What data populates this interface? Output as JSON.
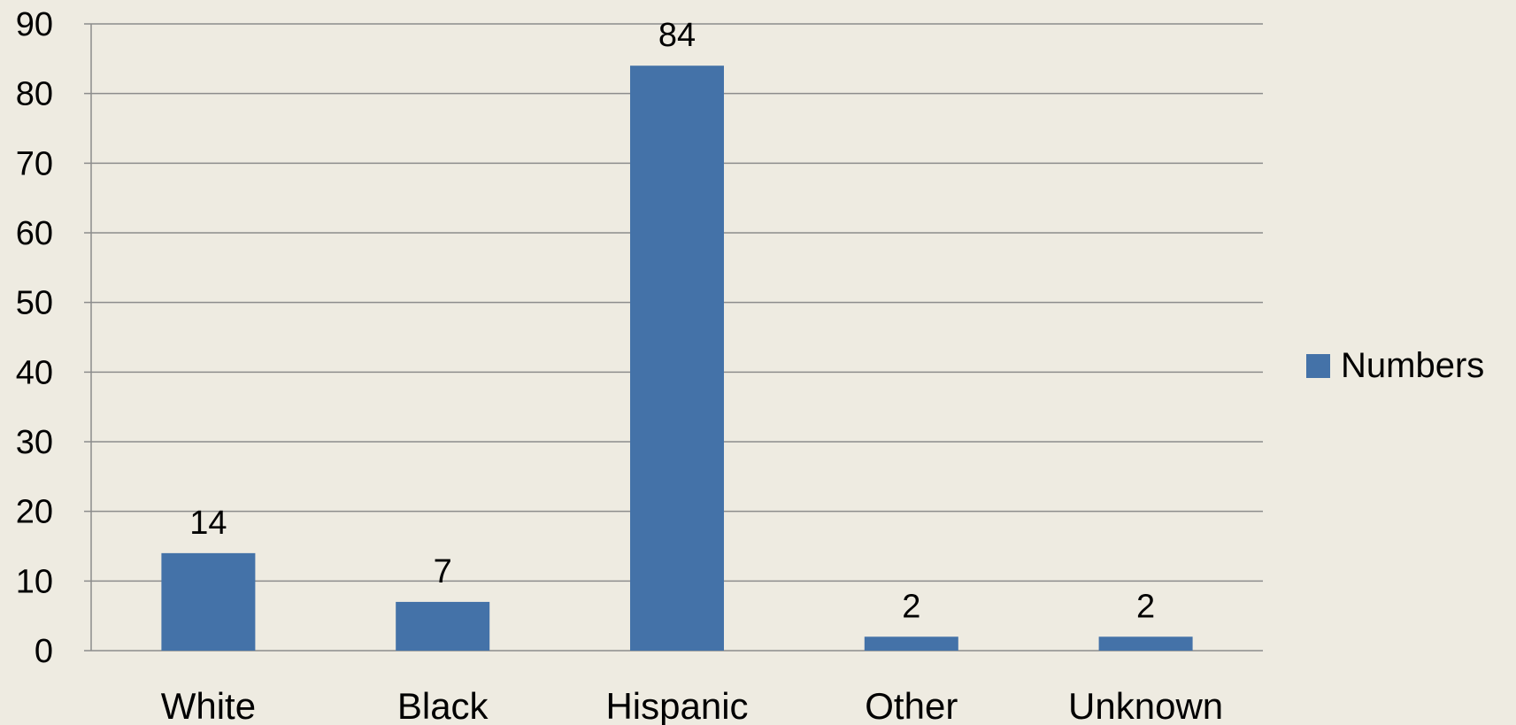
{
  "chart_data": {
    "type": "bar",
    "categories": [
      "White",
      "Black",
      "Hispanic",
      "Other",
      "Unknown"
    ],
    "series": [
      {
        "name": "Numbers",
        "values": [
          14,
          7,
          84,
          2,
          2
        ],
        "color": "#4472A8"
      }
    ],
    "ylim": [
      0,
      90
    ],
    "yticks": [
      0,
      10,
      20,
      30,
      40,
      50,
      60,
      70,
      80,
      90
    ],
    "data_labels": true,
    "grid": true,
    "legend": "right",
    "colors": {
      "background": "#EEEBE1",
      "gridline": "#8C8C8C",
      "bar": "#4472A8"
    }
  }
}
